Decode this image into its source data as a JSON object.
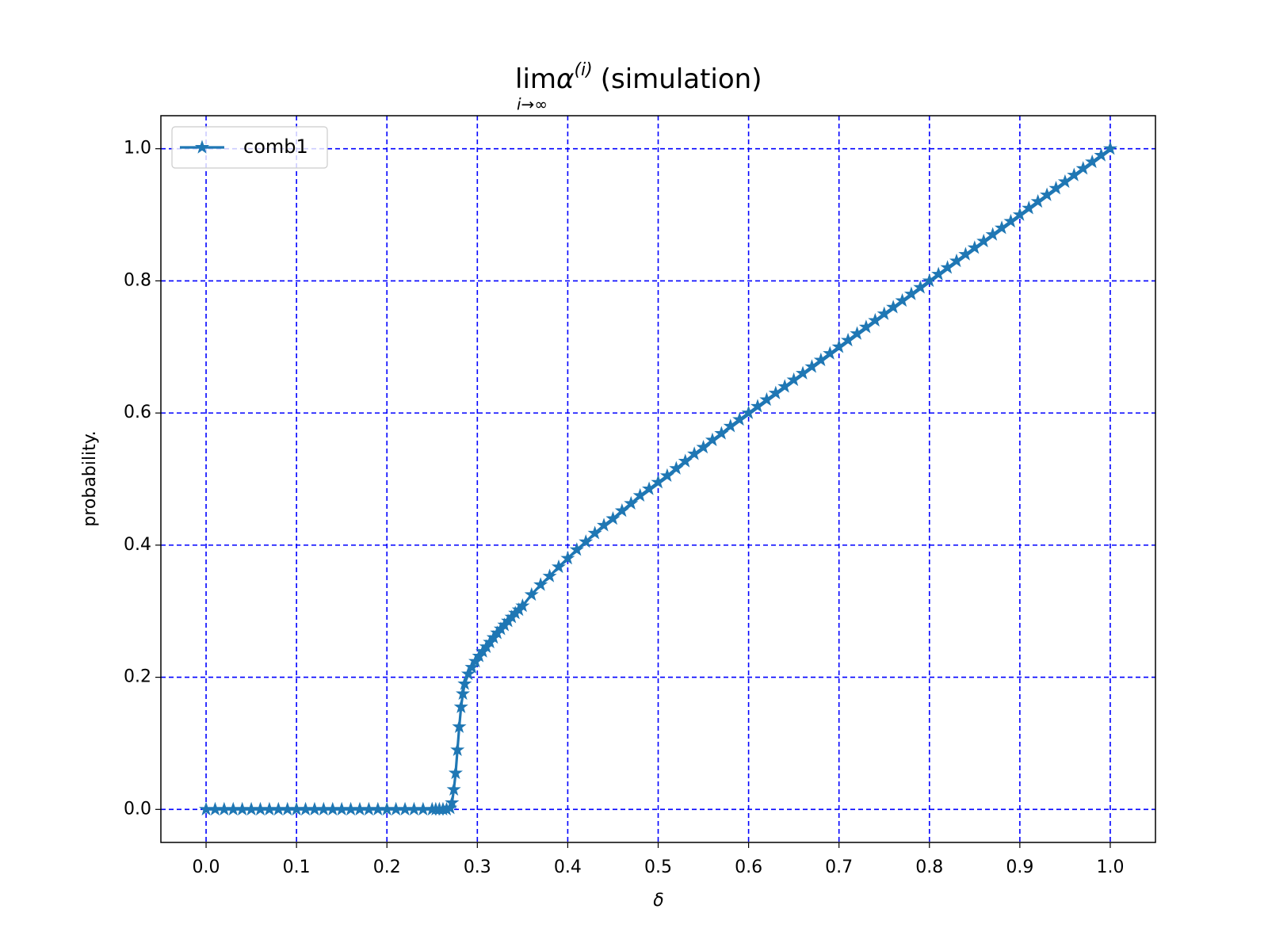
{
  "chart_data": {
    "type": "line",
    "title": {
      "lim": "lim",
      "limit_subscript": "i→∞",
      "symbol": "α",
      "superscript": "(i)",
      "rest": "(simulation)"
    },
    "xlabel": "δ",
    "ylabel": "probability.",
    "x": [
      0,
      0.01,
      0.02,
      0.03,
      0.04,
      0.05,
      0.06,
      0.07,
      0.08,
      0.09,
      0.1,
      0.11,
      0.12,
      0.13,
      0.14,
      0.15,
      0.16,
      0.17,
      0.18,
      0.19,
      0.2,
      0.21,
      0.22,
      0.23,
      0.24,
      0.25,
      0.254,
      0.258,
      0.262,
      0.266,
      0.27,
      0.272,
      0.274,
      0.276,
      0.278,
      0.28,
      0.282,
      0.284,
      0.286,
      0.29,
      0.294,
      0.298,
      0.302,
      0.306,
      0.31,
      0.314,
      0.318,
      0.322,
      0.326,
      0.33,
      0.334,
      0.338,
      0.342,
      0.346,
      0.35,
      0.36,
      0.37,
      0.38,
      0.39,
      0.4,
      0.41,
      0.42,
      0.43,
      0.44,
      0.45,
      0.46,
      0.47,
      0.48,
      0.49,
      0.5,
      0.51,
      0.52,
      0.53,
      0.54,
      0.55,
      0.56,
      0.57,
      0.58,
      0.59,
      0.6,
      0.61,
      0.62,
      0.63,
      0.64,
      0.65,
      0.66,
      0.67,
      0.68,
      0.69,
      0.7,
      0.71,
      0.72,
      0.73,
      0.74,
      0.75,
      0.76,
      0.77,
      0.78,
      0.79,
      0.8,
      0.81,
      0.82,
      0.83,
      0.84,
      0.85,
      0.86,
      0.87,
      0.88,
      0.89,
      0.9,
      0.91,
      0.92,
      0.93,
      0.94,
      0.95,
      0.96,
      0.97,
      0.98,
      0.99,
      1.0
    ],
    "series": [
      {
        "name": "comb1",
        "color": "#1f77b4",
        "marker": "star",
        "values": [
          0,
          0,
          0,
          0,
          0,
          0,
          0,
          0,
          0,
          0,
          0,
          0,
          0,
          0,
          0,
          0,
          0,
          0,
          0,
          0,
          0,
          0,
          0,
          0,
          0,
          0,
          0,
          0,
          0,
          0,
          0.002,
          0.01,
          0.03,
          0.055,
          0.09,
          0.125,
          0.155,
          0.175,
          0.19,
          0.205,
          0.215,
          0.224,
          0.232,
          0.239,
          0.246,
          0.253,
          0.26,
          0.267,
          0.273,
          0.279,
          0.285,
          0.291,
          0.297,
          0.302,
          0.308,
          0.325,
          0.34,
          0.353,
          0.367,
          0.38,
          0.393,
          0.405,
          0.418,
          0.43,
          0.44,
          0.452,
          0.463,
          0.475,
          0.485,
          0.495,
          0.505,
          0.516,
          0.527,
          0.538,
          0.548,
          0.559,
          0.569,
          0.58,
          0.59,
          0.6,
          0.61,
          0.62,
          0.63,
          0.64,
          0.65,
          0.66,
          0.67,
          0.68,
          0.69,
          0.7,
          0.71,
          0.72,
          0.73,
          0.74,
          0.75,
          0.76,
          0.77,
          0.78,
          0.79,
          0.8,
          0.81,
          0.82,
          0.83,
          0.84,
          0.85,
          0.86,
          0.87,
          0.88,
          0.89,
          0.9,
          0.91,
          0.92,
          0.93,
          0.94,
          0.95,
          0.96,
          0.97,
          0.98,
          0.99,
          1.0
        ]
      }
    ],
    "xlim": [
      -0.05,
      1.05
    ],
    "ylim": [
      -0.05,
      1.05
    ],
    "xticks": [
      {
        "value": 0,
        "label": "0.0"
      },
      {
        "value": 0.1,
        "label": "0.1"
      },
      {
        "value": 0.2,
        "label": "0.2"
      },
      {
        "value": 0.3,
        "label": "0.3"
      },
      {
        "value": 0.4,
        "label": "0.4"
      },
      {
        "value": 0.5,
        "label": "0.5"
      },
      {
        "value": 0.6,
        "label": "0.6"
      },
      {
        "value": 0.7,
        "label": "0.7"
      },
      {
        "value": 0.8,
        "label": "0.8"
      },
      {
        "value": 0.9,
        "label": "0.9"
      },
      {
        "value": 1,
        "label": "1.0"
      }
    ],
    "yticks": [
      {
        "value": 0,
        "label": "0.0"
      },
      {
        "value": 0.2,
        "label": "0.2"
      },
      {
        "value": 0.4,
        "label": "0.4"
      },
      {
        "value": 0.6,
        "label": "0.6"
      },
      {
        "value": 0.8,
        "label": "0.8"
      },
      {
        "value": 1,
        "label": "1.0"
      }
    ],
    "grid": true,
    "grid_color": "#0000ff",
    "legend": "upper left"
  }
}
